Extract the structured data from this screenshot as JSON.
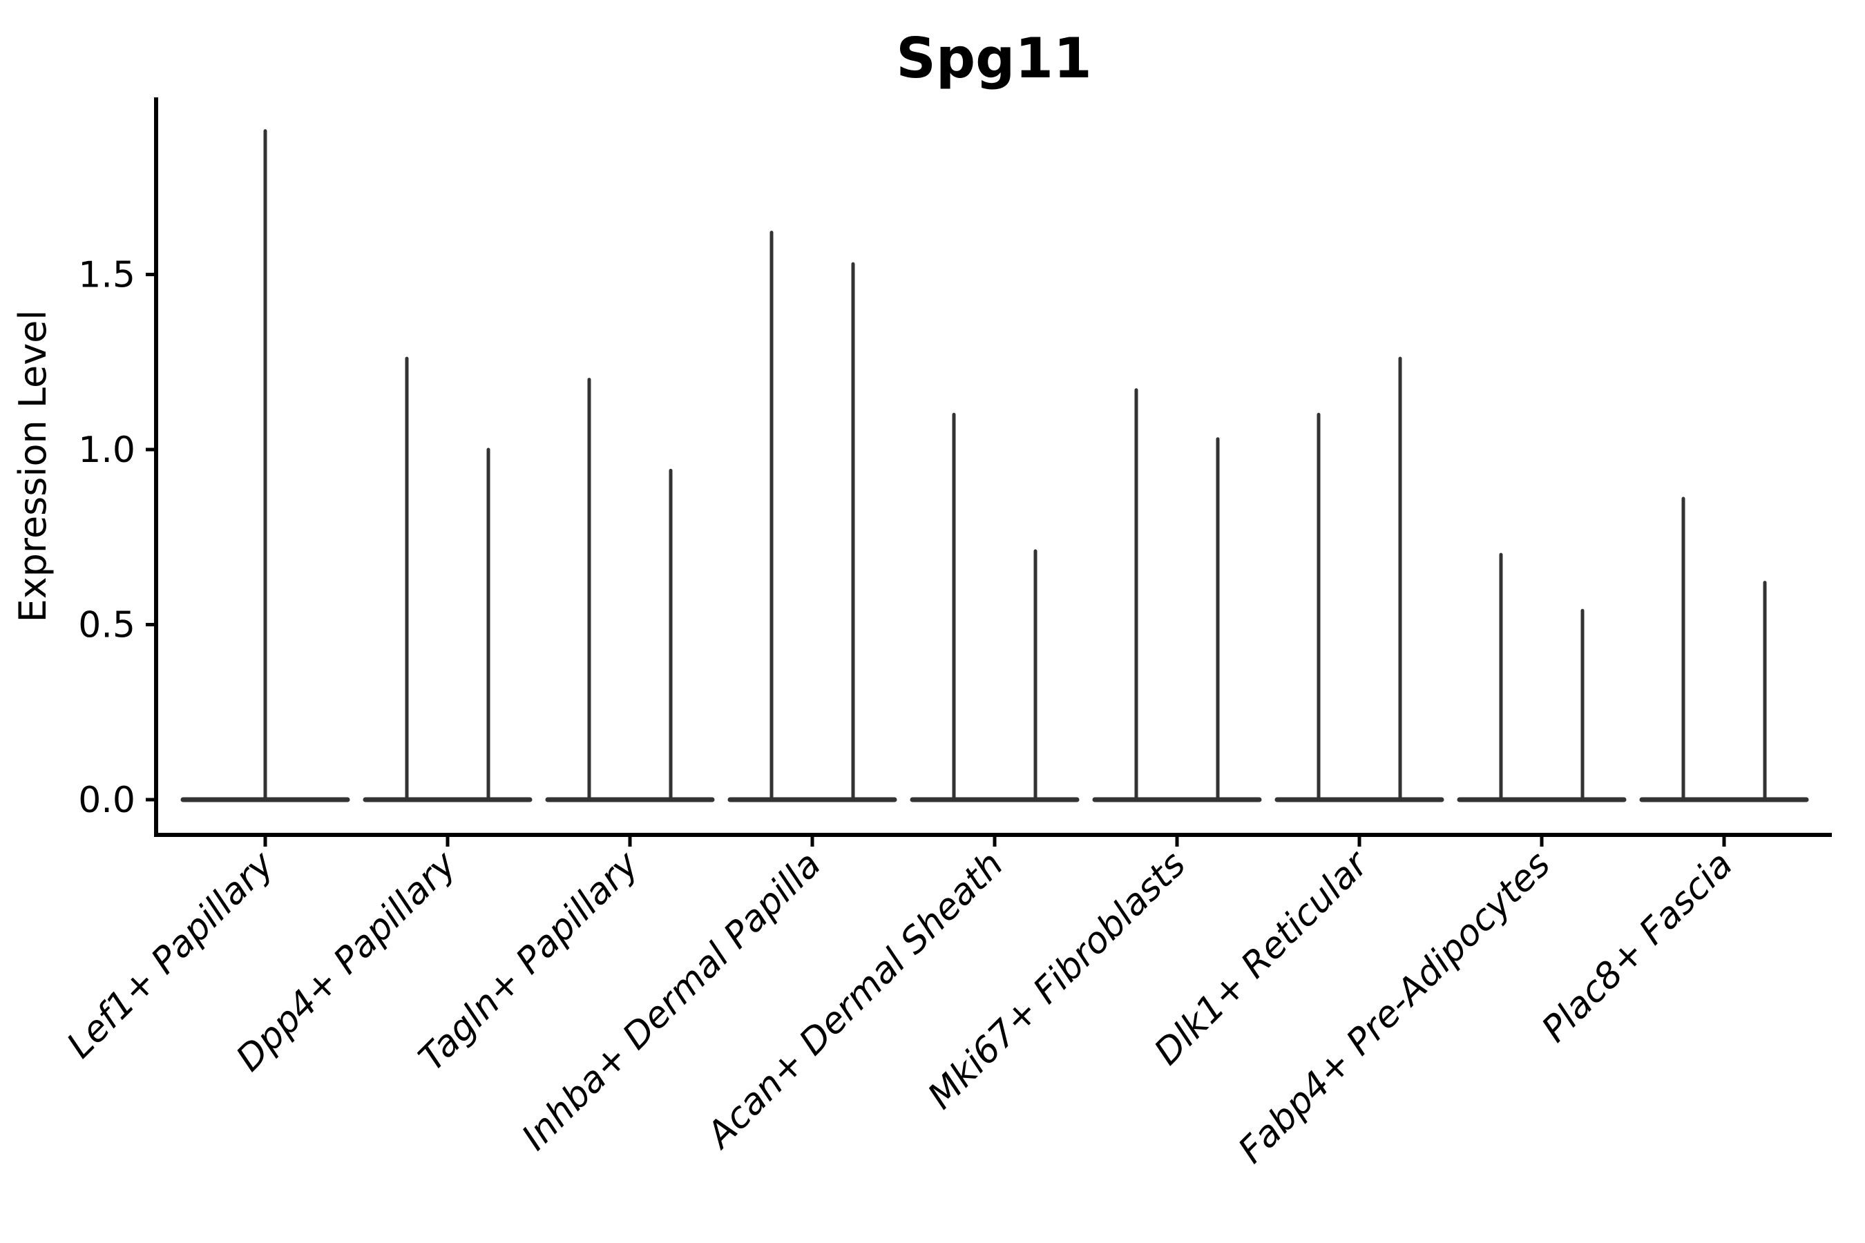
{
  "chart_data": {
    "type": "violin",
    "title": "Spg11",
    "xlabel": "",
    "ylabel": "Expression Level",
    "yticks": [
      "0.0",
      "0.5",
      "1.0",
      "1.5"
    ],
    "ytick_values": [
      0.0,
      0.5,
      1.0,
      1.5
    ],
    "ylim": [
      -0.1,
      2.0
    ],
    "grid": false,
    "legend": "none",
    "violin_color": "#333333",
    "axis_color": "#000000",
    "background_color": "#ffffff",
    "categories": [
      "Lef1+ Papillary",
      "Dpp4+ Papillary",
      "Tagln+ Papillary",
      "Inhba+ Dermal Papilla",
      "Acan+ Dermal Sheath",
      "Mki67+ Fibroblasts",
      "Dlk1+ Reticular",
      "Fabp4+ Pre-Adipocytes",
      "Plac8+ Fascia"
    ],
    "violins": [
      {
        "category": "Lef1+ Papillary",
        "spike_maxima": [
          1.91
        ],
        "baseline_value": 0.0
      },
      {
        "category": "Dpp4+ Papillary",
        "spike_maxima": [
          1.26,
          1.0
        ],
        "baseline_value": 0.0
      },
      {
        "category": "Tagln+ Papillary",
        "spike_maxima": [
          1.2,
          0.94
        ],
        "baseline_value": 0.0
      },
      {
        "category": "Inhba+ Dermal Papilla",
        "spike_maxima": [
          1.62,
          1.53
        ],
        "baseline_value": 0.0
      },
      {
        "category": "Acan+ Dermal Sheath",
        "spike_maxima": [
          1.1,
          0.71
        ],
        "baseline_value": 0.0
      },
      {
        "category": "Mki67+ Fibroblasts",
        "spike_maxima": [
          1.17,
          1.03
        ],
        "baseline_value": 0.0
      },
      {
        "category": "Dlk1+ Reticular",
        "spike_maxima": [
          1.1,
          1.26
        ],
        "baseline_value": 0.0
      },
      {
        "category": "Fabp4+ Pre-Adipocytes",
        "spike_maxima": [
          0.7,
          0.54
        ],
        "baseline_value": 0.0
      },
      {
        "category": "Plac8+ Fascia",
        "spike_maxima": [
          0.86,
          0.62
        ],
        "baseline_value": 0.0
      }
    ]
  }
}
